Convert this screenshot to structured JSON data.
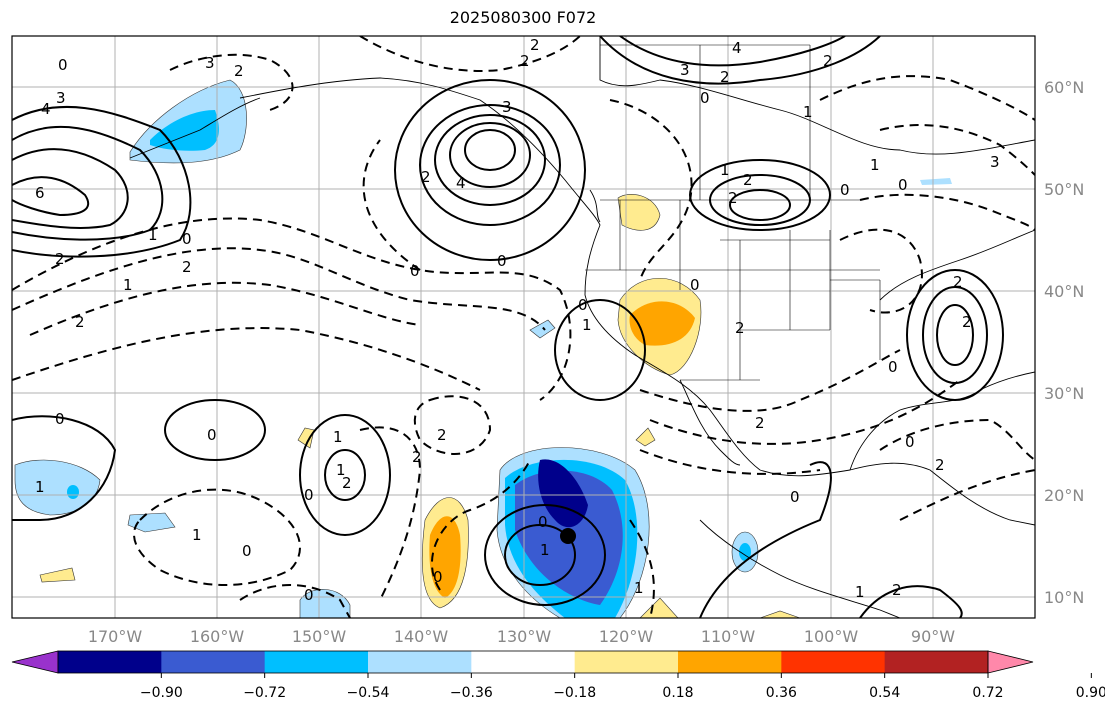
{
  "title": "2025080300 F072",
  "map": {
    "projection": "PlateCarree",
    "lon_range": [
      -180,
      -80
    ],
    "lat_range": [
      8,
      65
    ],
    "lat_ticks": [
      "60°N",
      "50°N",
      "40°N",
      "30°N",
      "20°N",
      "10°N"
    ],
    "lon_ticks": [
      "170°W",
      "160°W",
      "150°W",
      "140°W",
      "130°W",
      "120°W",
      "110°W",
      "100°W",
      "90°W"
    ],
    "gridlines": true
  },
  "colorbar": {
    "ticks": [
      "−0.90",
      "−0.72",
      "−0.54",
      "−0.36",
      "−0.18",
      "0.18",
      "0.36",
      "0.54",
      "0.72",
      "0.90"
    ],
    "colors": [
      "#9932CC",
      "#00008B",
      "#3A5BD1",
      "#00BFFF",
      "#ADE0FF",
      "#FFFFFF",
      "#FFEB8F",
      "#FFA500",
      "#FF3300",
      "#B22222",
      "#FF88AA"
    ],
    "extend": "both"
  },
  "contour_labels": [
    "0",
    "1",
    "2",
    "3",
    "4",
    "6"
  ]
}
